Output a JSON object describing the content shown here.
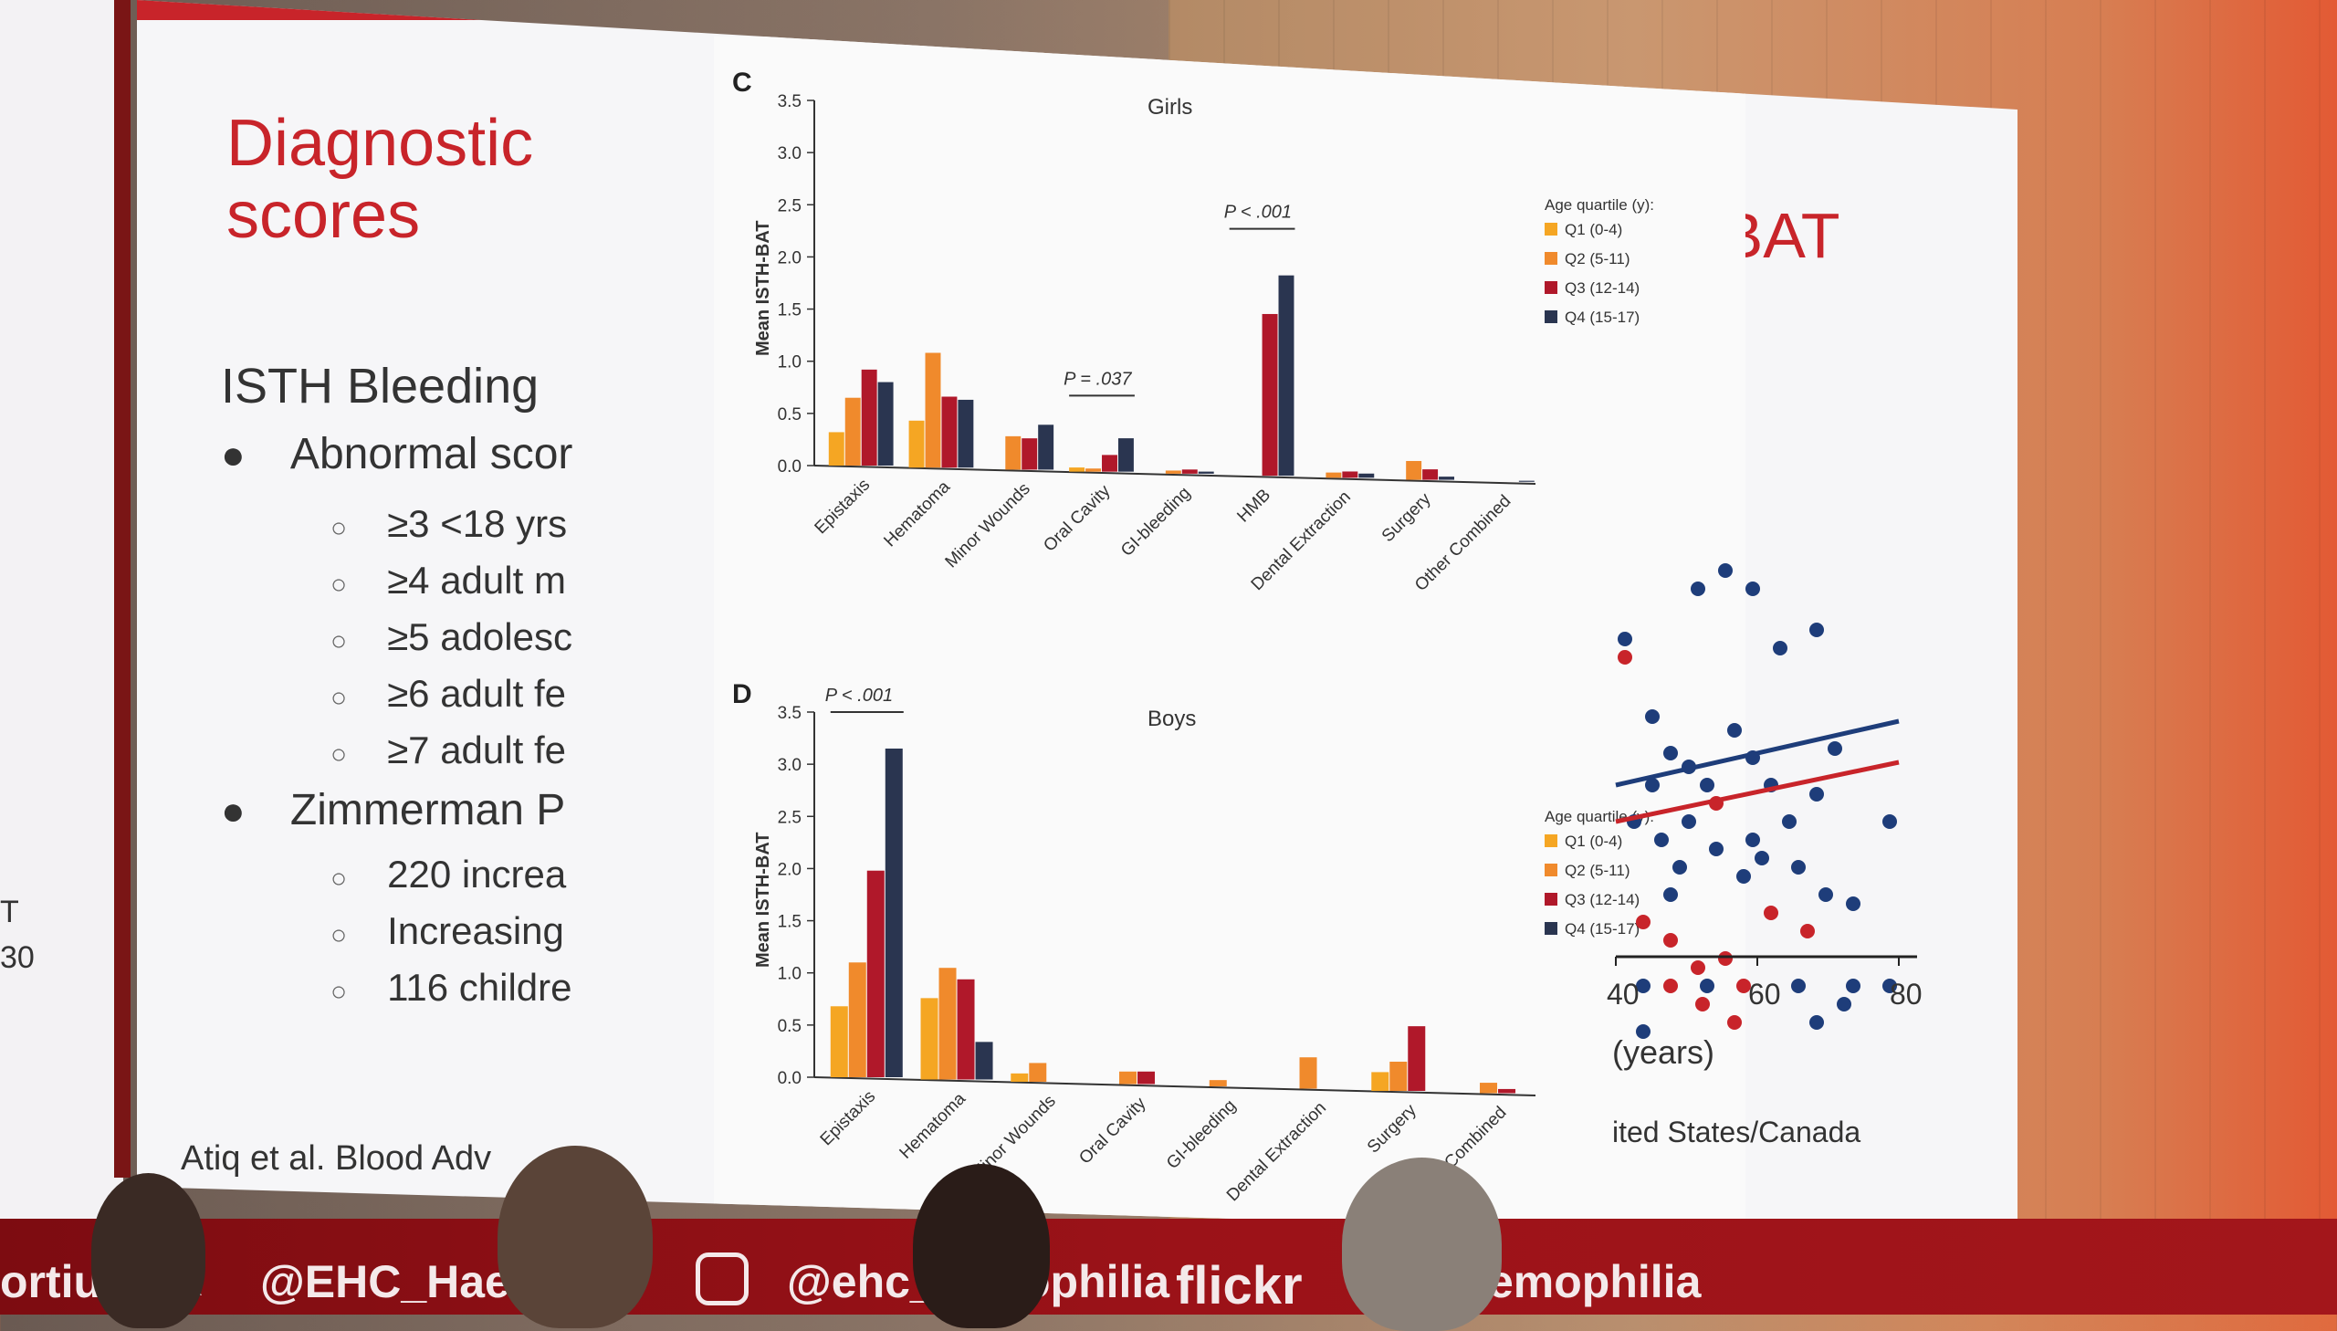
{
  "left_screen": {
    "fragments": [
      "T",
      "30"
    ]
  },
  "slide": {
    "title_line1": "Diagnostic",
    "title_line2": "scores",
    "isth_bat_title": "TH-BAT",
    "heading": "ISTH Bleeding",
    "bullet1": "Abnormal scor",
    "sub1": "≥3 <18 yrs",
    "sub2": "≥4 adult m",
    "sub3": "≥5 adolesc",
    "sub4": "≥6 adult fe",
    "sub5": "≥7 adult fe",
    "bullet2": "Zimmerman P",
    "sub6": "220 increa",
    "sub7": "Increasing",
    "sub8": "116 childre",
    "citation": "Atiq et al. Blood Adv",
    "scatter_xlabel": "(years)",
    "scatter_caption": "ited States/Canada",
    "scatter_xticks": [
      "40",
      "60",
      "80"
    ]
  },
  "footer": {
    "item1": "ortiu",
    "item2": "@EHC_Hae",
    "item2b": "a",
    "item3": "@ehc_h",
    "item3b": "ophilia",
    "item4": "flickr",
    "item5": "emophilia"
  },
  "colors": {
    "q1": "#f5a623",
    "q2": "#f08a2c",
    "q3": "#b0182a",
    "q4": "#2a3550",
    "slide_red": "#c8242a",
    "scatter_blue": "#1e3d7a",
    "scatter_red": "#c8242a"
  },
  "chart_data": [
    {
      "type": "bar",
      "panel": "C",
      "title": "Girls",
      "ylabel": "Mean ISTH-BAT",
      "ylim": [
        0,
        3.5
      ],
      "yticks": [
        "0.0",
        "0.5",
        "1.0",
        "1.5",
        "2.0",
        "2.5",
        "3.0",
        "3.5"
      ],
      "legend_title": "Age quartile (y):",
      "categories": [
        "Epistaxis",
        "Hematoma",
        "Minor Wounds",
        "Oral Cavity",
        "GI-bleeding",
        "HMB",
        "Dental Extraction",
        "Surgery",
        "Other Combined"
      ],
      "series": [
        {
          "name": "Q1 (0-4)",
          "values": [
            0.32,
            0.45,
            0,
            0.04,
            0,
            0,
            0,
            0,
            0
          ]
        },
        {
          "name": "Q2 (5-11)",
          "values": [
            0.65,
            1.1,
            0.32,
            0.03,
            0.03,
            0,
            0.05,
            0.18,
            0
          ]
        },
        {
          "name": "Q3 (12-14)",
          "values": [
            0.92,
            0.68,
            0.3,
            0.16,
            0.04,
            1.55,
            0.06,
            0.1,
            0
          ]
        },
        {
          "name": "Q4 (15-17)",
          "values": [
            0.8,
            0.65,
            0.43,
            0.32,
            0.02,
            1.92,
            0.04,
            0.03,
            0.01
          ]
        }
      ],
      "annotations": [
        {
          "text": "P < .001",
          "from": 5,
          "to": 5
        },
        {
          "text": "P = .037",
          "from": 3,
          "to": 3
        }
      ]
    },
    {
      "type": "bar",
      "panel": "D",
      "title": "Boys",
      "ylabel": "Mean ISTH-BAT",
      "ylim": [
        0,
        3.5
      ],
      "yticks": [
        "0.0",
        "0.5",
        "1.0",
        "1.5",
        "2.0",
        "2.5",
        "3.0",
        "3.5"
      ],
      "legend_title": "Age quartile (y):",
      "categories": [
        "Epistaxis",
        "Hematoma",
        "Minor Wounds",
        "Oral Cavity",
        "GI-bleeding",
        "Dental Extraction",
        "Surgery",
        "Other Combined"
      ],
      "series": [
        {
          "name": "Q1 (0-4)",
          "values": [
            0.68,
            0.78,
            0.08,
            0,
            0,
            0,
            0.18,
            0
          ]
        },
        {
          "name": "Q2 (5-11)",
          "values": [
            1.1,
            1.07,
            0.18,
            0.12,
            0.06,
            0.3,
            0.28,
            0.1
          ]
        },
        {
          "name": "Q3 (12-14)",
          "values": [
            1.98,
            0.96,
            0,
            0.12,
            0,
            0,
            0.62,
            0.04
          ]
        },
        {
          "name": "Q4 (15-17)",
          "values": [
            3.15,
            0.36,
            0,
            0,
            0,
            0,
            0,
            0
          ]
        }
      ],
      "annotations": [
        {
          "text": "P < .001",
          "from": 0,
          "to": 0
        }
      ]
    }
  ]
}
